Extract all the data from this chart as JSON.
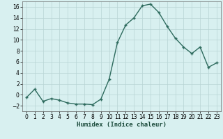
{
  "x": [
    0,
    1,
    2,
    3,
    4,
    5,
    6,
    7,
    8,
    9,
    10,
    11,
    12,
    13,
    14,
    15,
    16,
    17,
    18,
    19,
    20,
    21,
    22,
    23
  ],
  "y": [
    -0.5,
    1.0,
    -1.2,
    -0.7,
    -1.0,
    -1.5,
    -1.7,
    -1.7,
    -1.8,
    -0.8,
    2.8,
    9.5,
    12.7,
    14.0,
    16.2,
    16.5,
    15.0,
    12.5,
    10.3,
    8.7,
    7.5,
    8.7,
    5.0,
    5.8
  ],
  "line_color": "#2e6b5e",
  "marker": "+",
  "marker_size": 3.0,
  "bg_color": "#d8f0f0",
  "grid_color": "#b8d4d4",
  "xlabel": "Humidex (Indice chaleur)",
  "xlim": [
    -0.5,
    23.5
  ],
  "ylim": [
    -3,
    17
  ],
  "yticks": [
    -2,
    0,
    2,
    4,
    6,
    8,
    10,
    12,
    14,
    16
  ],
  "xticks": [
    0,
    1,
    2,
    3,
    4,
    5,
    6,
    7,
    8,
    9,
    10,
    11,
    12,
    13,
    14,
    15,
    16,
    17,
    18,
    19,
    20,
    21,
    22,
    23
  ],
  "tick_fontsize": 5.5,
  "xlabel_fontsize": 6.5,
  "linewidth": 1.0,
  "marker_linewidth": 1.0
}
